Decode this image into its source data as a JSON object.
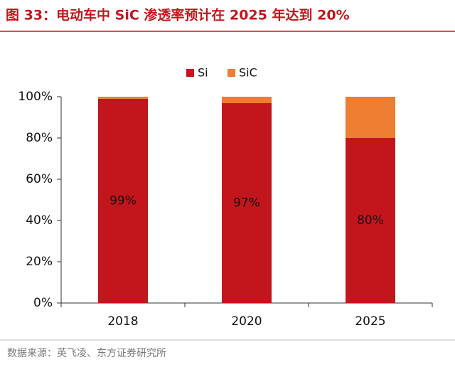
{
  "title": "图 33：电动车中 SiC 渗透率预计在 2025 年达到 20%",
  "source": "数据来源：英飞凌、东方证券研究所",
  "chart_data": {
    "type": "stacked-bar",
    "categories": [
      "2018",
      "2020",
      "2025"
    ],
    "series": [
      {
        "name": "Si",
        "color": "#c3161c",
        "values": [
          99,
          97,
          80
        ],
        "value_labels": [
          "99%",
          "97%",
          "80%"
        ]
      },
      {
        "name": "SiC",
        "color": "#ed7d31",
        "values": [
          1,
          3,
          20
        ]
      }
    ],
    "ylim": [
      0,
      100
    ],
    "yticks": [
      {
        "value": 0,
        "label": "0%"
      },
      {
        "value": 20,
        "label": "20%"
      },
      {
        "value": 40,
        "label": "40%"
      },
      {
        "value": 60,
        "label": "60%"
      },
      {
        "value": 80,
        "label": "80%"
      },
      {
        "value": 100,
        "label": "100%"
      }
    ],
    "grid": false,
    "legend": "top"
  }
}
